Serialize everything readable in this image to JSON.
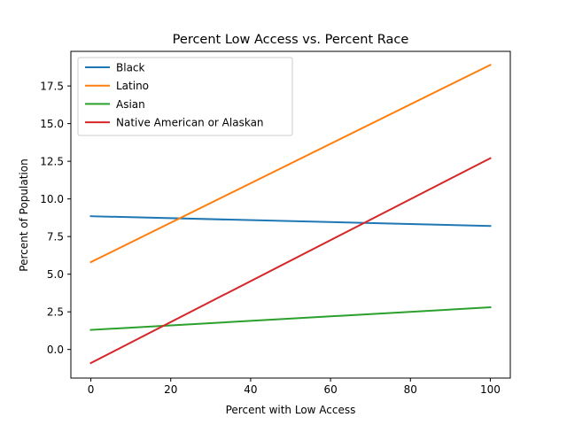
{
  "chart_data": {
    "type": "line",
    "title": "Percent Low Access vs. Percent Race",
    "xlabel": "Percent with Low Access",
    "ylabel": "Percent of Population",
    "xlim": [
      -5,
      105
    ],
    "ylim": [
      -1.9,
      19.8
    ],
    "xticks": [
      0,
      20,
      40,
      60,
      80,
      100
    ],
    "yticks": [
      0.0,
      2.5,
      5.0,
      7.5,
      10.0,
      12.5,
      15.0,
      17.5
    ],
    "xtick_labels": [
      "0",
      "20",
      "40",
      "60",
      "80",
      "100"
    ],
    "ytick_labels": [
      "0.0",
      "2.5",
      "5.0",
      "7.5",
      "10.0",
      "12.5",
      "15.0",
      "17.5"
    ],
    "grid": false,
    "legend": "top-left",
    "series": [
      {
        "name": "Black",
        "color": "#1f77b4",
        "x": [
          0,
          100
        ],
        "y": [
          8.85,
          8.2
        ]
      },
      {
        "name": "Latino",
        "color": "#ff7f0e",
        "x": [
          0,
          100
        ],
        "y": [
          5.8,
          18.9
        ]
      },
      {
        "name": "Asian",
        "color": "#2ca02c",
        "x": [
          0,
          100
        ],
        "y": [
          1.3,
          2.8
        ]
      },
      {
        "name": "Native American or Alaskan",
        "color": "#d62728",
        "x": [
          0,
          100
        ],
        "y": [
          -0.9,
          12.7
        ]
      }
    ]
  }
}
